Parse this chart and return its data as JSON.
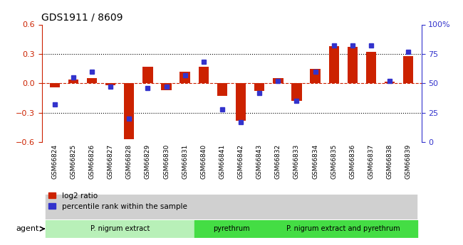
{
  "title": "GDS1911 / 8609",
  "samples": [
    "GSM66824",
    "GSM66825",
    "GSM66826",
    "GSM66827",
    "GSM66828",
    "GSM66829",
    "GSM66830",
    "GSM66831",
    "GSM66840",
    "GSM66841",
    "GSM66842",
    "GSM66843",
    "GSM66832",
    "GSM66833",
    "GSM66834",
    "GSM66835",
    "GSM66836",
    "GSM66837",
    "GSM66838",
    "GSM66839"
  ],
  "log2_ratio": [
    -0.04,
    0.04,
    0.05,
    -0.02,
    -0.57,
    0.17,
    -0.07,
    0.12,
    0.17,
    -0.13,
    -0.38,
    -0.08,
    0.05,
    -0.18,
    0.15,
    0.38,
    0.37,
    0.32,
    0.02,
    0.28
  ],
  "percentile": [
    32,
    55,
    60,
    47,
    20,
    46,
    47,
    57,
    68,
    28,
    17,
    42,
    52,
    35,
    60,
    82,
    82,
    82,
    52,
    77
  ],
  "ylim_left": [
    -0.6,
    0.6
  ],
  "ylim_right": [
    0,
    100
  ],
  "yticks_left": [
    -0.6,
    -0.3,
    0.0,
    0.3,
    0.6
  ],
  "yticks_right": [
    0,
    25,
    50,
    75,
    100
  ],
  "ytick_labels_right": [
    "0",
    "25",
    "50",
    "75",
    "100%"
  ],
  "bar_color_red": "#cc2200",
  "bar_color_blue": "#3333cc",
  "zero_line_color": "#cc2200",
  "agent_groups": [
    {
      "label": "P. nigrum extract",
      "start": 0,
      "end": 7,
      "color": "#b8f0b8"
    },
    {
      "label": "pyrethrum",
      "start": 8,
      "end": 11,
      "color": "#44dd44"
    },
    {
      "label": "P. nigrum extract and pyrethrum",
      "start": 12,
      "end": 19,
      "color": "#44dd44"
    }
  ],
  "agent_label": "agent",
  "legend_items": [
    {
      "color": "#cc2200",
      "label": "log2 ratio"
    },
    {
      "color": "#3333cc",
      "label": "percentile rank within the sample"
    }
  ],
  "background_color": "#ffffff"
}
